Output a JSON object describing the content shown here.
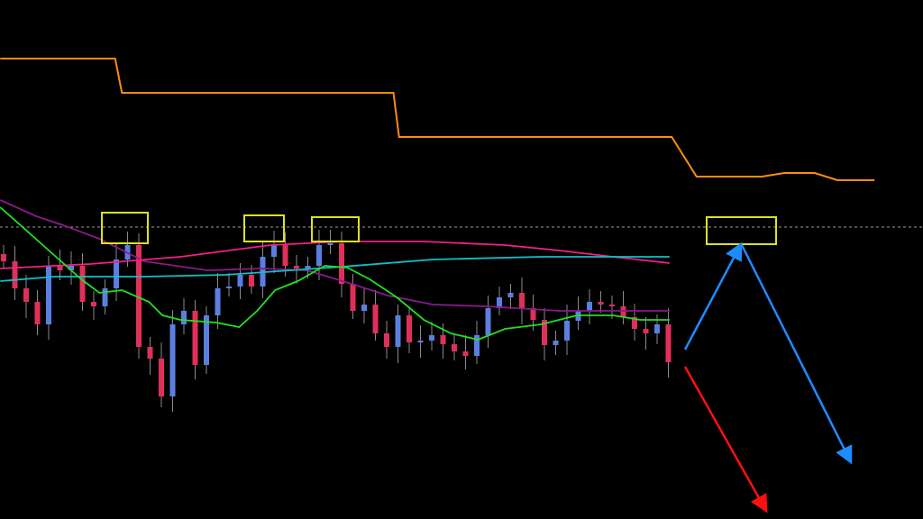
{
  "chart_data": {
    "type": "candlestick",
    "title": "",
    "xlabel": "",
    "ylabel": "",
    "grid": false,
    "colors": {
      "background": "#000000",
      "bull": "#5b7fe0",
      "bear": "#e0305a",
      "wick": "#8a8a8a",
      "ma_green": "#22e022",
      "ma_purple": "#8a1a8a",
      "ma_pink": "#f0208a",
      "ma_cyan": "#10c0c8",
      "level_orange": "#ff8c10",
      "highlight_box": "#e0e020",
      "arrow_blue": "#1e8cff",
      "arrow_red": "#ff1010",
      "dashed_level": "#9a9a9a"
    },
    "closes": [
      286,
      256,
      241,
      216,
      281,
      276,
      281,
      241,
      236,
      256,
      288,
      304,
      191,
      178,
      136,
      216,
      231,
      171,
      226,
      256,
      258,
      271,
      258,
      291,
      304,
      281,
      278,
      281,
      304,
      306,
      261,
      231,
      238,
      206,
      191,
      226,
      196,
      198,
      204,
      194,
      186,
      181,
      204,
      234,
      246,
      251,
      234,
      221,
      193,
      198,
      220,
      231,
      241,
      238,
      236,
      224,
      211,
      206,
      216,
      174
    ],
    "series": [
      {
        "kind": "ma",
        "color_key": "ma_purple",
        "points": [
          [
            -0.3,
            354
          ],
          [
            2.9,
            336
          ],
          [
            5.3,
            326
          ],
          [
            8.5,
            311
          ],
          [
            12.5,
            286
          ],
          [
            18.1,
            276
          ],
          [
            22.9,
            278
          ],
          [
            26.9,
            276
          ],
          [
            30.1,
            264
          ],
          [
            34.1,
            248
          ],
          [
            38.1,
            238
          ],
          [
            42.9,
            236
          ],
          [
            49.3,
            231
          ],
          [
            55.7,
            231
          ],
          [
            59.1,
            231
          ]
        ]
      },
      {
        "kind": "ma",
        "color_key": "ma_pink",
        "points": [
          [
            -0.3,
            278
          ],
          [
            7.7,
            283
          ],
          [
            15.7,
            291
          ],
          [
            23.7,
            304
          ],
          [
            30.1,
            308
          ],
          [
            37.3,
            308
          ],
          [
            44.5,
            304
          ],
          [
            49.3,
            298
          ],
          [
            54.1,
            291
          ],
          [
            59.1,
            284
          ]
        ]
      },
      {
        "kind": "ma",
        "color_key": "ma_cyan",
        "points": [
          [
            -0.3,
            264
          ],
          [
            4.5,
            269
          ],
          [
            12.5,
            269
          ],
          [
            19.7,
            271
          ],
          [
            30.1,
            280
          ],
          [
            38.1,
            288
          ],
          [
            47.7,
            291
          ],
          [
            59.1,
            291
          ]
        ]
      },
      {
        "kind": "ma",
        "color_key": "ma_green",
        "points": [
          [
            -0.3,
            346
          ],
          [
            3.3,
            306
          ],
          [
            6.9,
            266
          ],
          [
            8.5,
            251
          ],
          [
            10.5,
            254
          ],
          [
            12.9,
            241
          ],
          [
            14.1,
            226
          ],
          [
            15.7,
            221
          ],
          [
            18.9,
            218
          ],
          [
            20.9,
            213
          ],
          [
            22.5,
            231
          ],
          [
            24.1,
            254
          ],
          [
            26.1,
            264
          ],
          [
            28.5,
            281
          ],
          [
            30.5,
            279
          ],
          [
            32.5,
            266
          ],
          [
            34.9,
            246
          ],
          [
            37.3,
            221
          ],
          [
            39.7,
            206
          ],
          [
            42.1,
            199
          ],
          [
            44.5,
            211
          ],
          [
            47.7,
            216
          ],
          [
            50.9,
            226
          ],
          [
            54.1,
            226
          ],
          [
            56.5,
            221
          ],
          [
            59.1,
            221
          ]
        ]
      },
      {
        "kind": "level",
        "color_key": "level_orange",
        "points": [
          [
            -0.3,
            511
          ],
          [
            9.9,
            511
          ],
          [
            10.5,
            473
          ],
          [
            34.6,
            473
          ],
          [
            35.1,
            424
          ],
          [
            59.3,
            424
          ],
          [
            61.5,
            380
          ],
          [
            67.3,
            380
          ],
          [
            69.3,
            384
          ],
          [
            72.0,
            384
          ],
          [
            74.0,
            376
          ],
          [
            77.3,
            376
          ]
        ]
      }
    ]
  }
}
